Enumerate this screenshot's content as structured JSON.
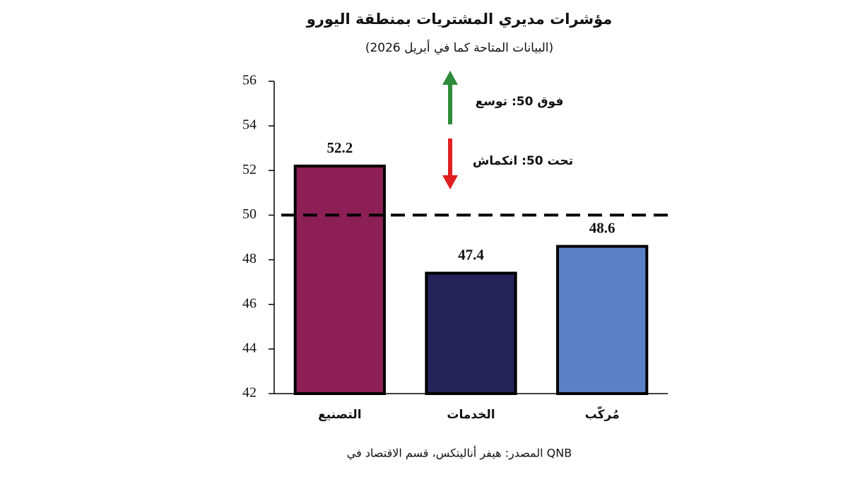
{
  "chart_data": {
    "type": "bar",
    "title": "مؤشرات مديري المشتريات بمنطقة اليورو",
    "subtitle": "(البيانات المتاحة كما في أبريل 2026)",
    "categories": [
      "التصنيع",
      "الخدمات",
      "مُركّب"
    ],
    "values": [
      52.2,
      47.4,
      48.6
    ],
    "colors": [
      "#8c1f55",
      "#25235a",
      "#5b80c6"
    ],
    "ylim": [
      42,
      56
    ],
    "yticks": [
      42,
      44,
      46,
      48,
      50,
      52,
      54,
      56
    ],
    "reference_line": 50,
    "annotations": [
      "فوق 50: توسع",
      "تحت 50: انكماش"
    ],
    "source": "المصدر: هيفر أناليتكس، قسم الاقتصاد في QNB"
  }
}
